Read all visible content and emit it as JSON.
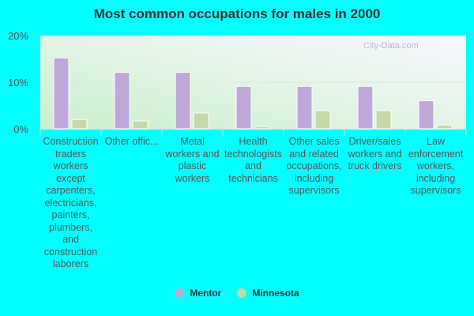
{
  "chart_data": {
    "type": "bar",
    "title": "Most common occupations for males in 2000",
    "categories": [
      "Construction traders workers except carpenters, electricians, painters, plumbers, and construction laborers",
      "Other offic...",
      "Metal workers and plastic workers",
      "Health technologists and technicians",
      "Other sales and related occupations, including supervisors",
      "Driver/sales workers and truck drivers",
      "Law enforcement workers, including supervisors"
    ],
    "series": [
      {
        "name": "Mentor",
        "color": "#bfa8d8",
        "values": [
          15.2,
          12.1,
          12.1,
          9.1,
          9.1,
          9.1,
          6.0
        ]
      },
      {
        "name": "Minnesota",
        "color": "#c5d9a8",
        "values": [
          2.0,
          1.7,
          3.4,
          0.5,
          3.9,
          3.9,
          0.8
        ]
      }
    ],
    "ylim": [
      0,
      20
    ],
    "yticks": [
      "0%",
      "10%",
      "20%"
    ],
    "grid": true,
    "legend": "bottom",
    "watermark": "City-Data.com"
  }
}
